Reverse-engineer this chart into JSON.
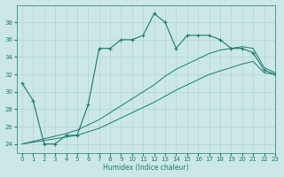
{
  "x_main": [
    0,
    1,
    2,
    3,
    4,
    5,
    6,
    7,
    8,
    9,
    10,
    11,
    12,
    13,
    14,
    15,
    16,
    17,
    18,
    19,
    20,
    21,
    22,
    23
  ],
  "y_main": [
    31,
    29,
    24,
    24,
    25,
    25,
    28.5,
    35,
    35,
    36,
    36,
    36.5,
    39,
    38,
    35,
    36.5,
    36.5,
    36.5,
    36,
    35,
    35,
    34.5,
    32.5,
    32
  ],
  "y_line1": [
    24,
    24.2,
    24.4,
    24.6,
    24.8,
    25.0,
    25.4,
    25.8,
    26.4,
    27.0,
    27.6,
    28.2,
    28.8,
    29.5,
    30.2,
    30.8,
    31.4,
    32.0,
    32.4,
    32.8,
    33.2,
    33.5,
    32.2,
    32.0
  ],
  "y_line2": [
    24,
    24.3,
    24.6,
    24.9,
    25.2,
    25.6,
    26.2,
    26.8,
    27.6,
    28.4,
    29.2,
    30.0,
    30.8,
    31.8,
    32.6,
    33.2,
    33.8,
    34.4,
    34.8,
    35.0,
    35.2,
    35.0,
    32.8,
    32.2
  ],
  "bg_color": "#cce8e6",
  "line_color": "#1a7a6e",
  "grid_color": "#aed4d0",
  "xlabel": "Humidex (Indice chaleur)",
  "ylim": [
    23,
    40
  ],
  "xlim": [
    -0.5,
    23
  ],
  "yticks": [
    24,
    26,
    28,
    30,
    32,
    34,
    36,
    38
  ],
  "xticks": [
    0,
    1,
    2,
    3,
    4,
    5,
    6,
    7,
    8,
    9,
    10,
    11,
    12,
    13,
    14,
    15,
    16,
    17,
    18,
    19,
    20,
    21,
    22,
    23
  ]
}
